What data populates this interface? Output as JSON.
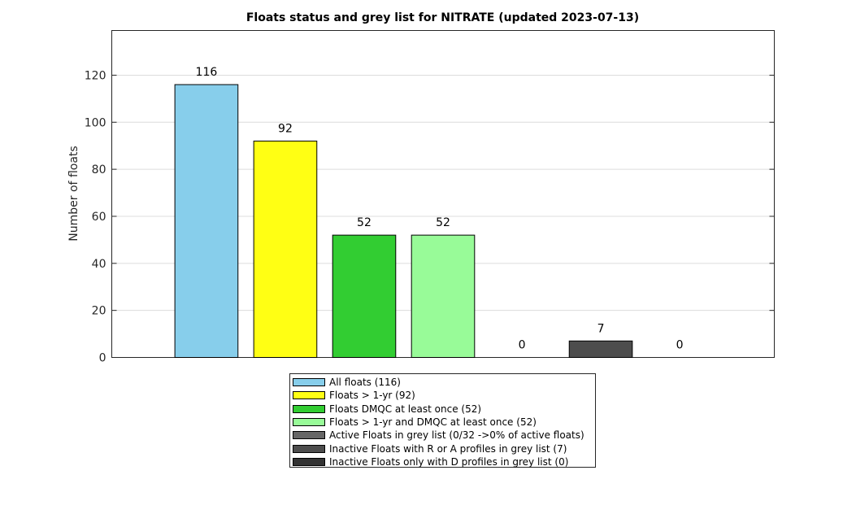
{
  "chart_data": {
    "type": "bar",
    "title": "Floats status and grey list for NITRATE (updated 2023-07-13)",
    "xlabel": "",
    "ylabel": "Number of floats",
    "ylim": [
      0,
      139
    ],
    "yticks": [
      0,
      20,
      40,
      60,
      80,
      100,
      120
    ],
    "grid": true,
    "legend_position": "bottom-outside",
    "categories": [
      "All floats (116)",
      "Floats > 1-yr (92)",
      "Floats DMQC at least once (52)",
      "Floats > 1-yr and DMQC at least once (52)",
      "Active Floats in grey list (0/32 ->0% of active floats)",
      "Inactive Floats with R or A profiles in grey list (7)",
      "Inactive Floats only with D profiles in grey list (0)"
    ],
    "values": [
      116,
      92,
      52,
      52,
      0,
      7,
      0
    ],
    "data_labels": [
      "116",
      "92",
      "52",
      "52",
      "0",
      "7",
      "0"
    ],
    "colors": [
      "#87ceeb",
      "#ffff14",
      "#32cd32",
      "#98fb98",
      "#666666",
      "#4d4d4d",
      "#333333"
    ]
  }
}
